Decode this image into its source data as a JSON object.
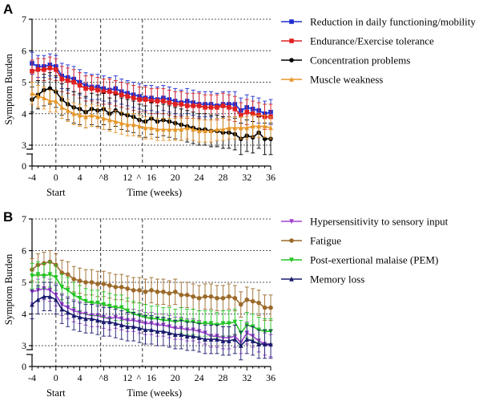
{
  "chart_data": [
    {
      "type": "line",
      "panel_label": "A",
      "ylabel": "Symptom Burden",
      "xlabel": "Time (weeks)",
      "start_label": "Start",
      "caret_label": "^",
      "x_tick_labels": [
        "-4",
        "0",
        "4",
        "^8",
        "12",
        "^",
        "16",
        "20",
        "24",
        "28",
        "32",
        "36"
      ],
      "y_tick_labels": [
        "0",
        "3",
        "4",
        "5",
        "6",
        "7"
      ],
      "x_ticks": [
        -4,
        0,
        4,
        8,
        12,
        16,
        20,
        24,
        28,
        32,
        36
      ],
      "y_ticks": [
        3,
        4,
        5,
        6,
        7
      ],
      "xlim": [
        -4,
        36
      ],
      "ylim": [
        0,
        7
      ],
      "y_axis_break": [
        0,
        2.6
      ],
      "grid": true,
      "legend_position": "right",
      "vlines": [
        0,
        7.5,
        14.5
      ],
      "x": [
        -4,
        -3,
        -2,
        -1,
        0,
        1,
        2,
        3,
        4,
        5,
        6,
        7,
        8,
        9,
        10,
        11,
        12,
        13,
        14,
        15,
        16,
        17,
        18,
        19,
        20,
        21,
        22,
        23,
        24,
        25,
        26,
        27,
        28,
        29,
        30,
        31,
        32,
        33,
        34,
        35,
        36
      ],
      "series": [
        {
          "name": "Reduction in daily functioning/mobility",
          "color": "#1f2fd1",
          "marker": "square",
          "values": [
            5.6,
            5.5,
            5.5,
            5.55,
            5.5,
            5.2,
            5.15,
            5.1,
            5.0,
            4.9,
            4.85,
            4.85,
            4.8,
            4.75,
            4.8,
            4.7,
            4.65,
            4.6,
            4.55,
            4.5,
            4.5,
            4.45,
            4.5,
            4.45,
            4.4,
            4.35,
            4.4,
            4.35,
            4.3,
            4.3,
            4.3,
            4.25,
            4.3,
            4.3,
            4.3,
            4.1,
            4.2,
            4.15,
            4.1,
            4.0,
            4.05
          ],
          "errors": [
            0.35,
            0.35,
            0.35,
            0.35,
            0.35,
            0.4,
            0.4,
            0.4,
            0.4,
            0.4,
            0.4,
            0.4,
            0.4,
            0.4,
            0.4,
            0.4,
            0.4,
            0.4,
            0.4,
            0.4,
            0.4,
            0.4,
            0.4,
            0.4,
            0.4,
            0.4,
            0.4,
            0.4,
            0.4,
            0.4,
            0.4,
            0.4,
            0.4,
            0.4,
            0.4,
            0.4,
            0.4,
            0.4,
            0.4,
            0.4,
            0.4
          ]
        },
        {
          "name": "Endurance/Exercise tolerance",
          "color": "#e02020",
          "marker": "square",
          "values": [
            5.35,
            5.4,
            5.4,
            5.45,
            5.4,
            5.1,
            5.05,
            5.0,
            4.9,
            4.8,
            4.8,
            4.75,
            4.7,
            4.7,
            4.65,
            4.6,
            4.55,
            4.5,
            4.45,
            4.45,
            4.4,
            4.4,
            4.4,
            4.35,
            4.3,
            4.3,
            4.25,
            4.25,
            4.25,
            4.2,
            4.2,
            4.2,
            4.25,
            4.2,
            4.15,
            3.95,
            4.05,
            4.0,
            3.95,
            3.9,
            3.9
          ],
          "errors": [
            0.35,
            0.35,
            0.35,
            0.35,
            0.35,
            0.4,
            0.4,
            0.4,
            0.4,
            0.4,
            0.4,
            0.4,
            0.4,
            0.4,
            0.4,
            0.4,
            0.4,
            0.4,
            0.4,
            0.4,
            0.4,
            0.4,
            0.4,
            0.4,
            0.4,
            0.4,
            0.4,
            0.4,
            0.4,
            0.4,
            0.4,
            0.4,
            0.4,
            0.4,
            0.4,
            0.4,
            0.4,
            0.4,
            0.4,
            0.4,
            0.4
          ]
        },
        {
          "name": "Concentration problems",
          "color": "#000000",
          "marker": "circle",
          "values": [
            4.45,
            4.6,
            4.75,
            4.8,
            4.7,
            4.45,
            4.3,
            4.2,
            4.15,
            4.05,
            4.15,
            4.1,
            4.15,
            4.0,
            4.1,
            4.0,
            3.95,
            3.9,
            3.8,
            3.75,
            3.85,
            3.75,
            3.8,
            3.75,
            3.7,
            3.65,
            3.6,
            3.55,
            3.5,
            3.5,
            3.45,
            3.45,
            3.4,
            3.4,
            3.35,
            3.2,
            3.3,
            3.25,
            3.4,
            3.2,
            3.2
          ],
          "errors": [
            0.4,
            0.45,
            0.5,
            0.5,
            0.5,
            0.5,
            0.5,
            0.5,
            0.5,
            0.5,
            0.5,
            0.5,
            0.5,
            0.5,
            0.5,
            0.5,
            0.5,
            0.5,
            0.5,
            0.5,
            0.5,
            0.5,
            0.5,
            0.5,
            0.5,
            0.5,
            0.5,
            0.5,
            0.5,
            0.5,
            0.5,
            0.5,
            0.5,
            0.5,
            0.5,
            0.5,
            0.5,
            0.5,
            0.5,
            0.5,
            0.5
          ]
        },
        {
          "name": "Muscle weakness",
          "color": "#e69628",
          "marker": "triangle-up",
          "values": [
            4.65,
            4.55,
            4.5,
            4.4,
            4.4,
            4.2,
            4.1,
            4.0,
            3.95,
            3.9,
            3.95,
            3.9,
            3.85,
            3.8,
            3.75,
            3.7,
            3.65,
            3.65,
            3.6,
            3.55,
            3.55,
            3.5,
            3.5,
            3.5,
            3.5,
            3.5,
            3.55,
            3.5,
            3.45,
            3.45,
            3.45,
            3.5,
            3.5,
            3.55,
            3.55,
            3.55,
            3.55,
            3.6,
            3.6,
            3.6,
            3.55
          ],
          "errors": [
            0.35,
            0.35,
            0.35,
            0.35,
            0.35,
            0.35,
            0.35,
            0.35,
            0.35,
            0.35,
            0.35,
            0.35,
            0.35,
            0.35,
            0.35,
            0.35,
            0.35,
            0.35,
            0.35,
            0.35,
            0.35,
            0.35,
            0.35,
            0.35,
            0.35,
            0.35,
            0.35,
            0.35,
            0.35,
            0.35,
            0.35,
            0.35,
            0.35,
            0.35,
            0.35,
            0.35,
            0.35,
            0.35,
            0.35,
            0.35,
            0.35
          ]
        }
      ]
    },
    {
      "type": "line",
      "panel_label": "B",
      "ylabel": "Symptom Burden",
      "xlabel": "Time (weeks)",
      "start_label": "Start",
      "caret_label": "^",
      "x_tick_labels": [
        "-4",
        "0",
        "4",
        "^8",
        "12",
        "^",
        "16",
        "20",
        "24",
        "28",
        "32",
        "36"
      ],
      "y_tick_labels": [
        "0",
        "3",
        "4",
        "5",
        "6",
        "7"
      ],
      "x_ticks": [
        -4,
        0,
        4,
        8,
        12,
        16,
        20,
        24,
        28,
        32,
        36
      ],
      "y_ticks": [
        3,
        4,
        5,
        6,
        7
      ],
      "xlim": [
        -4,
        36
      ],
      "ylim": [
        0,
        7
      ],
      "y_axis_break": [
        0,
        2.6
      ],
      "grid": true,
      "legend_position": "right",
      "vlines": [
        0,
        7.5,
        14.5
      ],
      "x": [
        -4,
        -3,
        -2,
        -1,
        0,
        1,
        2,
        3,
        4,
        5,
        6,
        7,
        8,
        9,
        10,
        11,
        12,
        13,
        14,
        15,
        16,
        17,
        18,
        19,
        20,
        21,
        22,
        23,
        24,
        25,
        26,
        27,
        28,
        29,
        30,
        31,
        32,
        33,
        34,
        35,
        36
      ],
      "series": [
        {
          "name": "Hypersensitivity to sensory input",
          "color": "#a040d0",
          "marker": "triangle-down",
          "values": [
            4.7,
            4.75,
            4.8,
            4.75,
            4.6,
            4.3,
            4.2,
            4.1,
            4.05,
            4.0,
            3.95,
            3.95,
            3.9,
            3.85,
            3.9,
            3.85,
            3.8,
            3.8,
            3.75,
            3.7,
            3.7,
            3.65,
            3.65,
            3.6,
            3.55,
            3.55,
            3.5,
            3.5,
            3.45,
            3.4,
            3.3,
            3.3,
            3.25,
            3.25,
            3.3,
            3.1,
            3.4,
            3.3,
            3.15,
            3.05,
            3.0
          ],
          "errors": [
            0.35,
            0.35,
            0.35,
            0.35,
            0.35,
            0.35,
            0.35,
            0.35,
            0.35,
            0.35,
            0.35,
            0.35,
            0.35,
            0.35,
            0.35,
            0.35,
            0.35,
            0.35,
            0.35,
            0.35,
            0.35,
            0.35,
            0.35,
            0.35,
            0.35,
            0.35,
            0.35,
            0.35,
            0.35,
            0.35,
            0.35,
            0.35,
            0.35,
            0.35,
            0.35,
            0.35,
            0.35,
            0.35,
            0.35,
            0.35,
            0.35
          ]
        },
        {
          "name": "Fatigue",
          "color": "#9c6a2a",
          "marker": "circle",
          "values": [
            5.4,
            5.55,
            5.6,
            5.65,
            5.55,
            5.3,
            5.25,
            5.1,
            5.05,
            5.0,
            5.0,
            4.95,
            4.95,
            4.9,
            4.85,
            4.85,
            4.8,
            4.75,
            4.75,
            4.7,
            4.75,
            4.7,
            4.7,
            4.65,
            4.7,
            4.6,
            4.6,
            4.55,
            4.5,
            4.55,
            4.55,
            4.5,
            4.5,
            4.55,
            4.5,
            4.3,
            4.45,
            4.4,
            4.35,
            4.2,
            4.2
          ],
          "errors": [
            0.35,
            0.35,
            0.35,
            0.35,
            0.35,
            0.4,
            0.4,
            0.4,
            0.4,
            0.4,
            0.4,
            0.4,
            0.4,
            0.4,
            0.4,
            0.4,
            0.4,
            0.4,
            0.4,
            0.4,
            0.4,
            0.4,
            0.4,
            0.4,
            0.4,
            0.4,
            0.4,
            0.4,
            0.4,
            0.4,
            0.4,
            0.4,
            0.4,
            0.4,
            0.4,
            0.4,
            0.4,
            0.4,
            0.4,
            0.4,
            0.4
          ]
        },
        {
          "name": "Post-exertional malaise (PEM)",
          "color": "#22c422",
          "marker": "triangle-down",
          "values": [
            5.2,
            5.25,
            5.2,
            5.25,
            5.15,
            4.85,
            4.75,
            4.6,
            4.5,
            4.4,
            4.35,
            4.35,
            4.3,
            4.25,
            4.2,
            4.2,
            4.1,
            4.0,
            3.95,
            3.9,
            3.85,
            3.85,
            3.8,
            3.8,
            3.75,
            3.8,
            3.75,
            3.75,
            3.7,
            3.7,
            3.7,
            3.65,
            3.7,
            3.7,
            3.75,
            3.4,
            3.65,
            3.6,
            3.5,
            3.45,
            3.45
          ],
          "errors": [
            0.4,
            0.4,
            0.4,
            0.4,
            0.4,
            0.4,
            0.4,
            0.4,
            0.4,
            0.4,
            0.4,
            0.4,
            0.4,
            0.4,
            0.4,
            0.4,
            0.4,
            0.4,
            0.4,
            0.4,
            0.4,
            0.4,
            0.4,
            0.4,
            0.4,
            0.4,
            0.4,
            0.4,
            0.4,
            0.4,
            0.4,
            0.4,
            0.4,
            0.4,
            0.4,
            0.4,
            0.4,
            0.4,
            0.4,
            0.4,
            0.4
          ]
        },
        {
          "name": "Memory loss",
          "color": "#1a1a6e",
          "marker": "triangle-up",
          "values": [
            4.3,
            4.45,
            4.55,
            4.55,
            4.45,
            4.15,
            4.05,
            3.95,
            3.9,
            3.85,
            3.85,
            3.8,
            3.75,
            3.75,
            3.7,
            3.65,
            3.6,
            3.6,
            3.55,
            3.5,
            3.5,
            3.45,
            3.45,
            3.4,
            3.35,
            3.35,
            3.3,
            3.3,
            3.25,
            3.2,
            3.2,
            3.2,
            3.15,
            3.15,
            3.2,
            3.0,
            3.2,
            3.15,
            3.05,
            3.05,
            3.05
          ],
          "errors": [
            0.45,
            0.45,
            0.45,
            0.45,
            0.45,
            0.45,
            0.45,
            0.45,
            0.45,
            0.45,
            0.45,
            0.45,
            0.45,
            0.45,
            0.45,
            0.45,
            0.45,
            0.45,
            0.45,
            0.45,
            0.45,
            0.45,
            0.45,
            0.45,
            0.45,
            0.45,
            0.45,
            0.45,
            0.45,
            0.45,
            0.45,
            0.45,
            0.45,
            0.45,
            0.45,
            0.45,
            0.45,
            0.45,
            0.45,
            0.45,
            0.45
          ]
        }
      ]
    }
  ]
}
